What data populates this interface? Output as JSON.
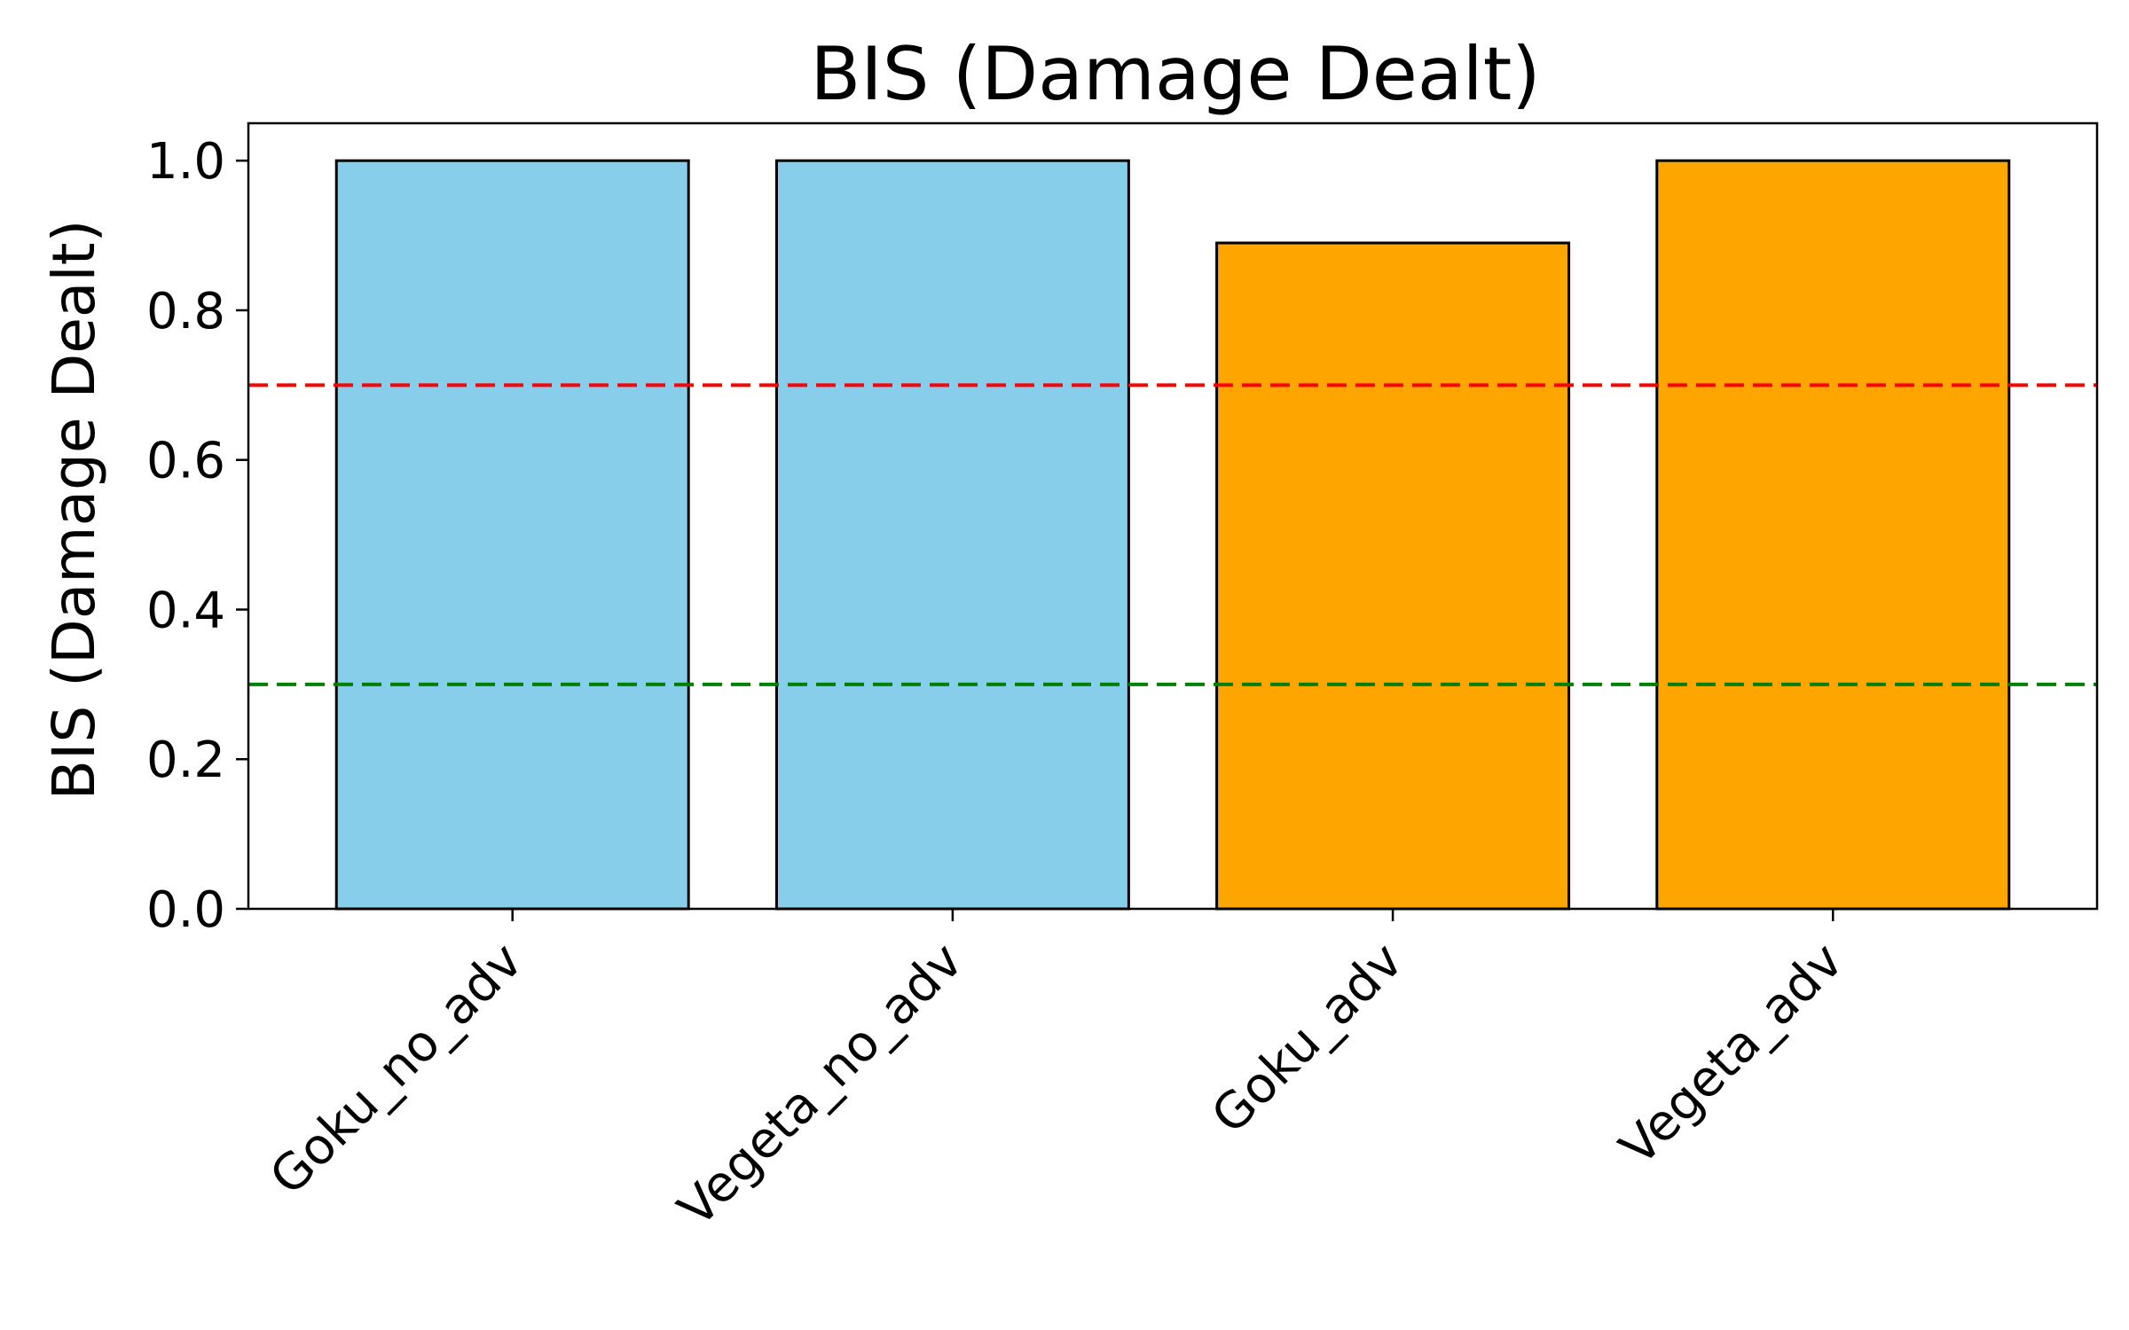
{
  "chart_data": {
    "type": "bar",
    "title": "BIS (Damage Dealt)",
    "xlabel": "",
    "ylabel": "BIS (Damage Dealt)",
    "categories": [
      "Goku_no_adv",
      "Vegeta_no_adv",
      "Goku_adv",
      "Vegeta_adv"
    ],
    "values": [
      1.0,
      1.0,
      0.89,
      1.0
    ],
    "bar_colors": [
      "#87CEEB",
      "#87CEEB",
      "#FFA500",
      "#FFA500"
    ],
    "bar_edge_color": "#000000",
    "ylim": [
      0,
      1.05
    ],
    "yticks": [
      0.0,
      0.2,
      0.4,
      0.6,
      0.8,
      1.0
    ],
    "ytick_labels": [
      "0.0",
      "0.2",
      "0.4",
      "0.6",
      "0.8",
      "1.0"
    ],
    "reference_lines": [
      {
        "value": 0.7,
        "color": "#FF0000",
        "style": "dashed"
      },
      {
        "value": 0.3,
        "color": "#008000",
        "style": "dashed"
      }
    ],
    "grid": false,
    "legend": "none"
  }
}
